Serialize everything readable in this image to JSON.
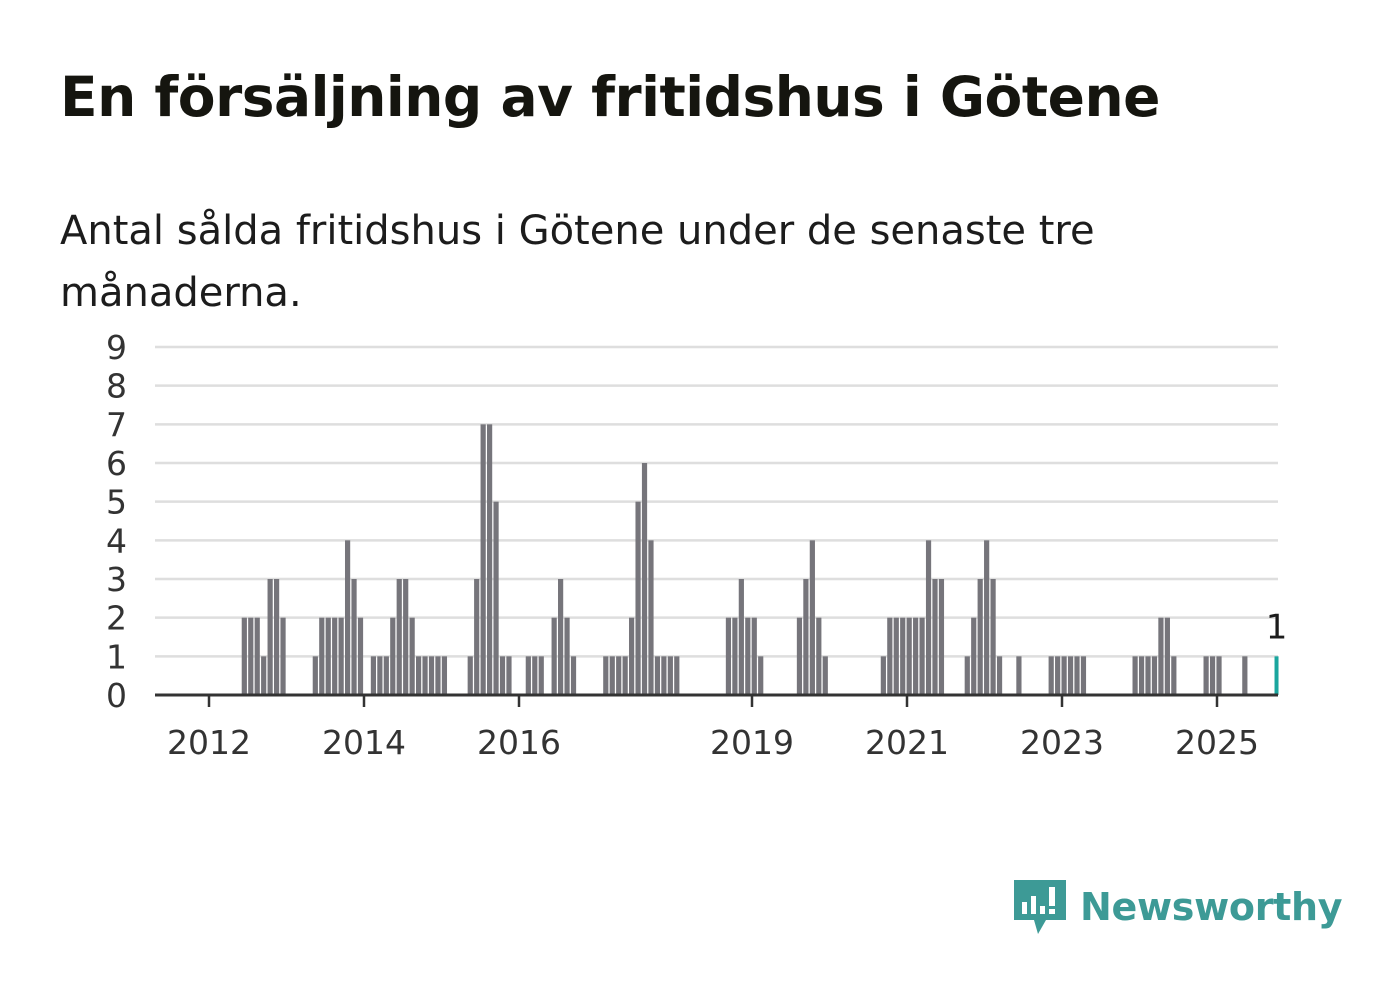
{
  "title": "En försäljning av fritidshus i Götene",
  "subtitle": "Antal sålda fritidshus i Götene under de senaste tre månaderna.",
  "brand": {
    "name": "Newsworthy",
    "icon": "newsworthy-logo-icon",
    "color": "#3d9a96"
  },
  "chart_data": {
    "type": "bar",
    "title": "En försäljning av fritidshus i Götene",
    "ylim": [
      0,
      9
    ],
    "yticks": [
      0,
      1,
      2,
      3,
      4,
      5,
      6,
      7,
      8,
      9
    ],
    "xtick_labels": [
      "2012",
      "2014",
      "2016",
      "2019",
      "2021",
      "2023",
      "2025"
    ],
    "grid": true,
    "colors": {
      "bar": "#76757b",
      "highlight": "#1aa69e",
      "grid": "#dedede",
      "axis": "#333333"
    },
    "highlight_label": "1",
    "values": [
      0,
      0,
      0,
      0,
      0,
      0,
      0,
      0,
      0,
      0,
      0,
      0,
      0,
      2,
      2,
      2,
      1,
      3,
      3,
      2,
      0,
      0,
      0,
      0,
      1,
      2,
      2,
      2,
      2,
      4,
      3,
      2,
      0,
      1,
      1,
      1,
      2,
      3,
      3,
      2,
      1,
      1,
      1,
      1,
      1,
      0,
      0,
      0,
      1,
      3,
      7,
      7,
      5,
      1,
      1,
      0,
      0,
      1,
      1,
      1,
      0,
      2,
      3,
      2,
      1,
      0,
      0,
      0,
      0,
      1,
      1,
      1,
      1,
      2,
      5,
      6,
      4,
      1,
      1,
      1,
      1,
      0,
      0,
      0,
      0,
      0,
      0,
      0,
      2,
      2,
      3,
      2,
      2,
      1,
      0,
      0,
      0,
      0,
      0,
      2,
      3,
      4,
      2,
      1,
      0,
      0,
      0,
      0,
      0,
      0,
      0,
      0,
      1,
      2,
      2,
      2,
      2,
      2,
      2,
      4,
      3,
      3,
      0,
      0,
      0,
      1,
      2,
      3,
      4,
      3,
      1,
      0,
      0,
      1,
      0,
      0,
      0,
      0,
      1,
      1,
      1,
      1,
      1,
      1,
      0,
      0,
      0,
      0,
      0,
      0,
      0,
      1,
      1,
      1,
      1,
      2,
      2,
      1,
      0,
      0,
      0,
      0,
      1,
      1,
      1,
      0,
      0,
      0,
      1,
      0,
      0,
      0,
      0,
      1
    ]
  }
}
